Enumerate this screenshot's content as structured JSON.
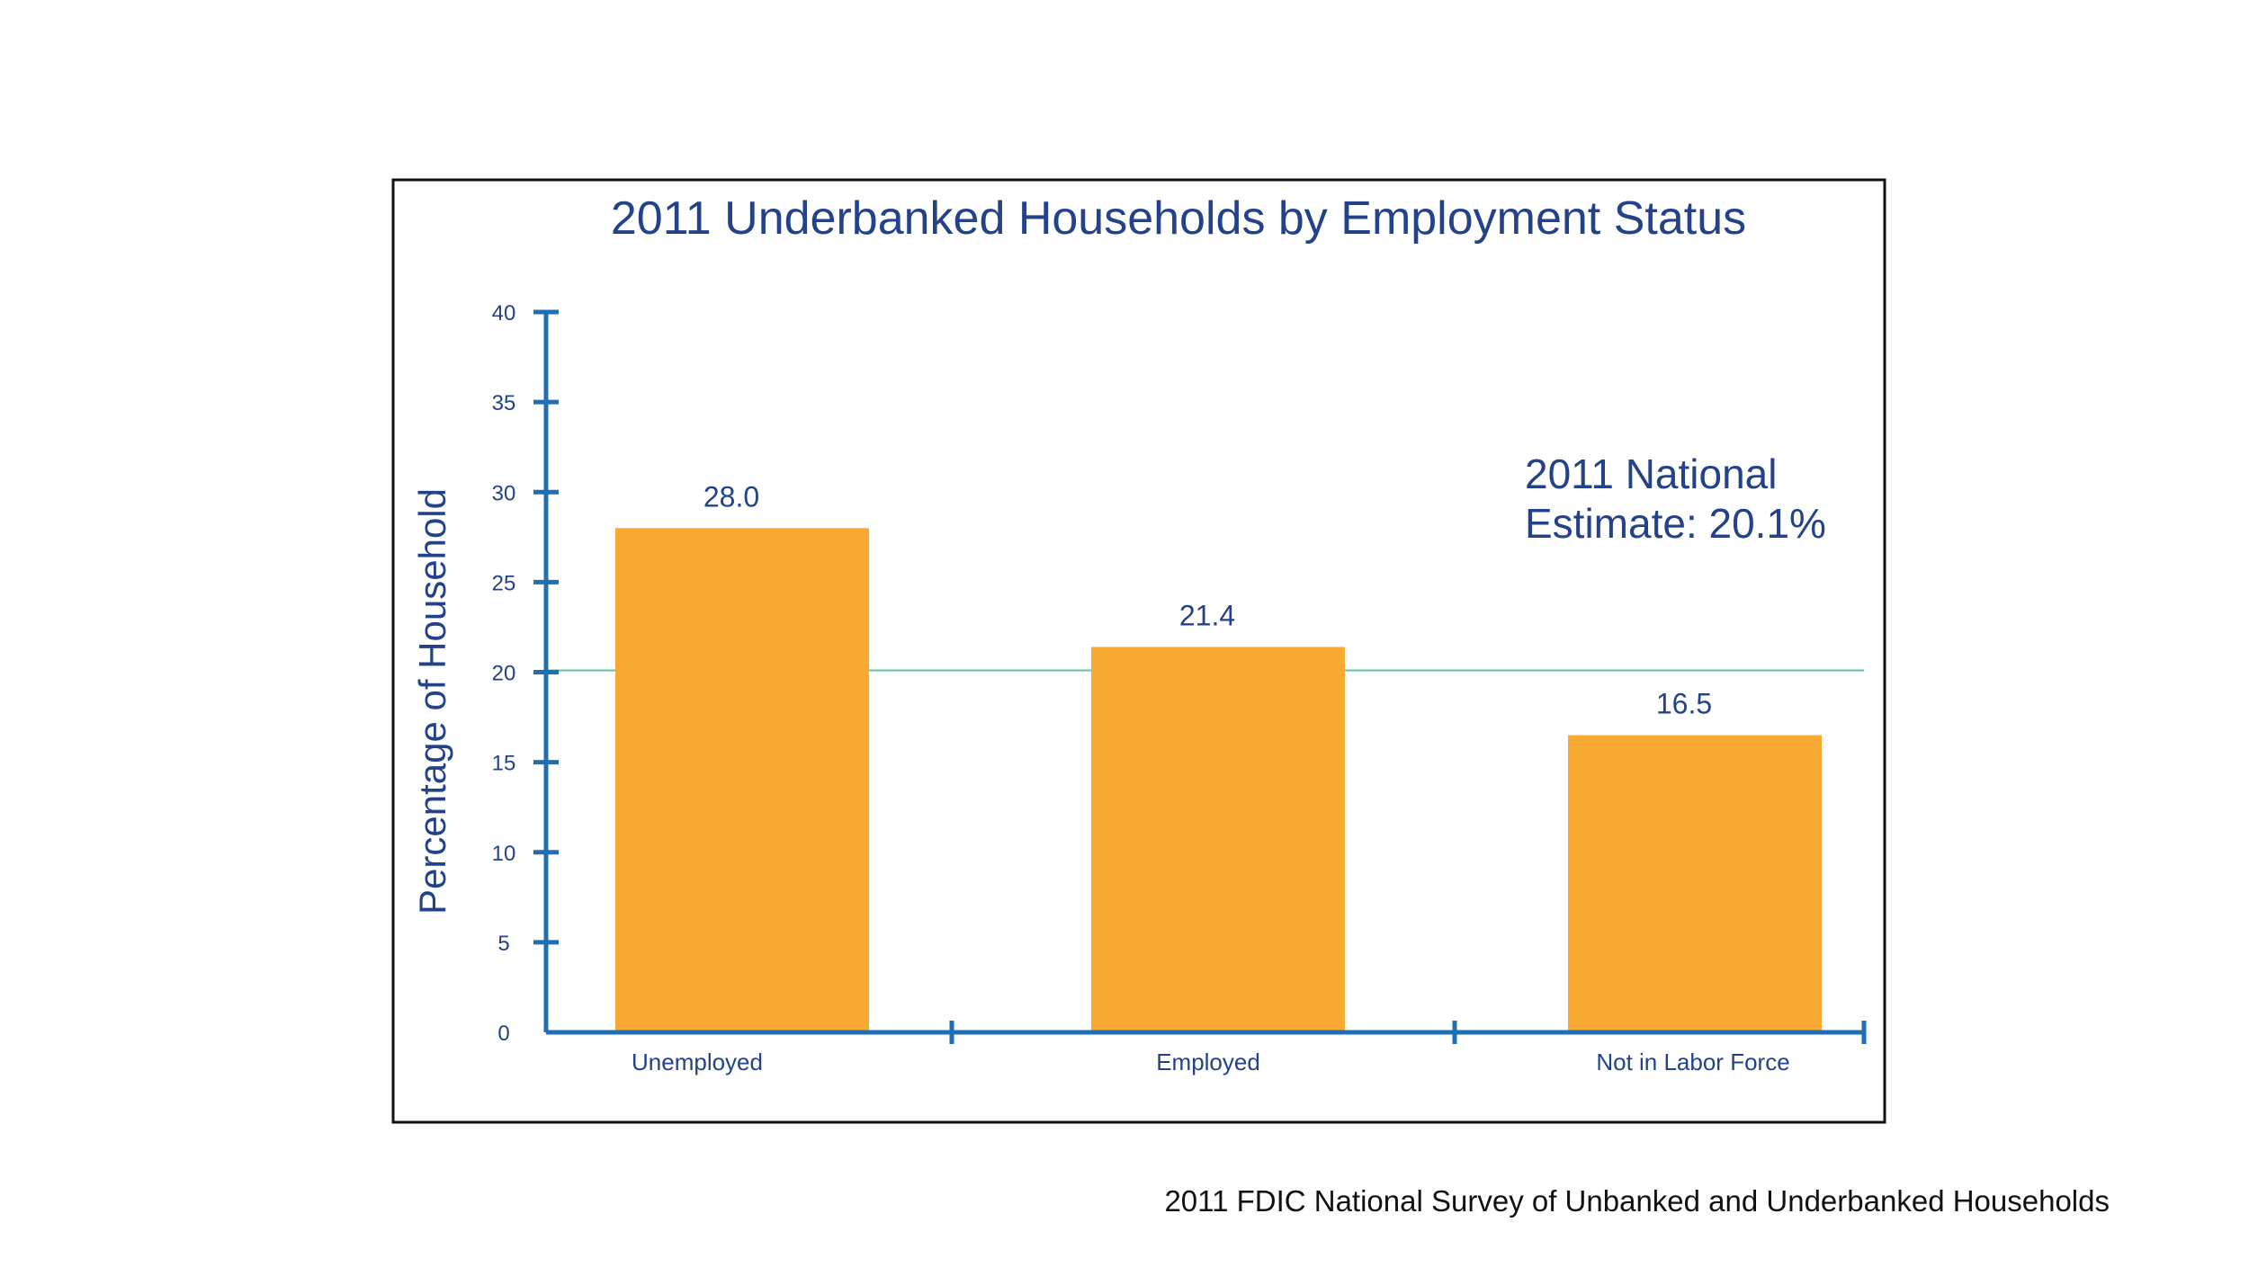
{
  "chart_data": {
    "type": "bar",
    "title": "2011 Underbanked Households by Employment Status",
    "ylabel": "Percentage of Household",
    "xlabel": "",
    "categories": [
      "Unemployed",
      "Employed",
      "Not in Labor Force"
    ],
    "values": [
      28.0,
      21.4,
      16.5
    ],
    "value_labels": [
      "28.0",
      "21.4",
      "16.5"
    ],
    "ylim": [
      0,
      40
    ],
    "yticks": [
      0,
      5,
      10,
      15,
      20,
      25,
      30,
      35,
      40
    ],
    "reference_line": {
      "value": 20.1,
      "label_line1": "2011 National",
      "label_line2": "Estimate: 20.1%"
    },
    "grid": false,
    "legend": "none"
  },
  "source": "2011 FDIC National Survey of Unbanked and Underbanked Households",
  "colors": {
    "bar": "#f8a931",
    "axis": "#1f6fb4",
    "text": "#23428a",
    "reference_line": "#5bc6a0",
    "frame": "#111111"
  }
}
